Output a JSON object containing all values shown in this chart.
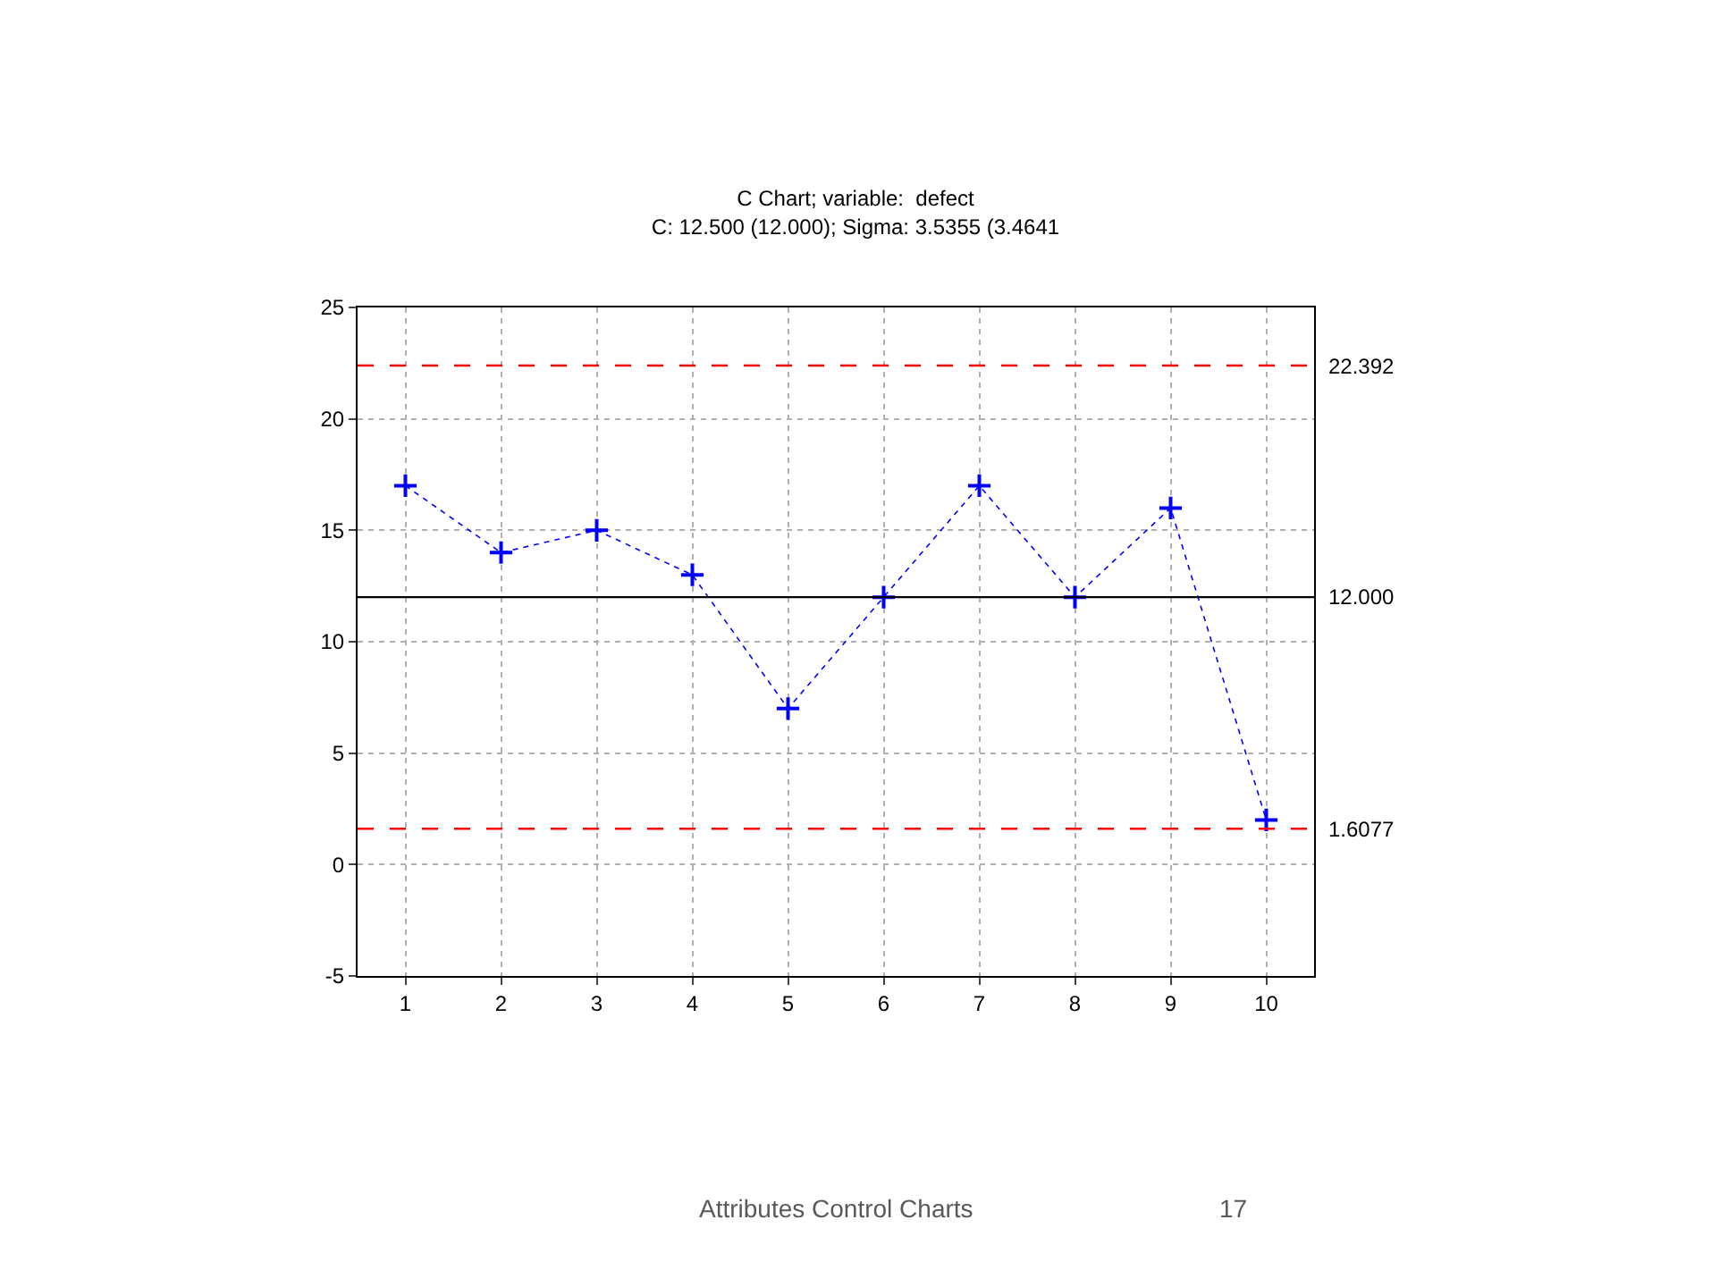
{
  "chart_data": {
    "type": "line",
    "title": "C Chart; variable:  defect",
    "subtitle": "C: 12.500 (12.000); Sigma: 3.5355 (3.4641",
    "x": [
      1,
      2,
      3,
      4,
      5,
      6,
      7,
      8,
      9,
      10
    ],
    "series": [
      {
        "color": "#0000ff",
        "values": [
          17,
          14,
          15,
          13,
          7,
          12,
          17,
          12,
          16,
          2
        ]
      }
    ],
    "xlim": [
      0.5,
      10.5
    ],
    "xticks": [
      1,
      2,
      3,
      4,
      5,
      6,
      7,
      8,
      9,
      10
    ],
    "ylim": [
      -5,
      25
    ],
    "yticks": [
      -5,
      0,
      5,
      10,
      15,
      20,
      25
    ],
    "ref_lines": [
      {
        "axis": "y",
        "value": 22.392,
        "label": "22.392",
        "color": "#ff0000",
        "line_style": "dashed"
      },
      {
        "axis": "y",
        "value": 12.0,
        "label": "12.000",
        "color": "#000000",
        "line_style": "solid"
      },
      {
        "axis": "y",
        "value": 1.6077,
        "label": "1.6077",
        "color": "#ff0000",
        "line_style": "dashed"
      }
    ],
    "grid": true,
    "marker": "cross",
    "line_style": "dotted",
    "annotations": [
      "Attributes Control Charts",
      "17"
    ]
  }
}
